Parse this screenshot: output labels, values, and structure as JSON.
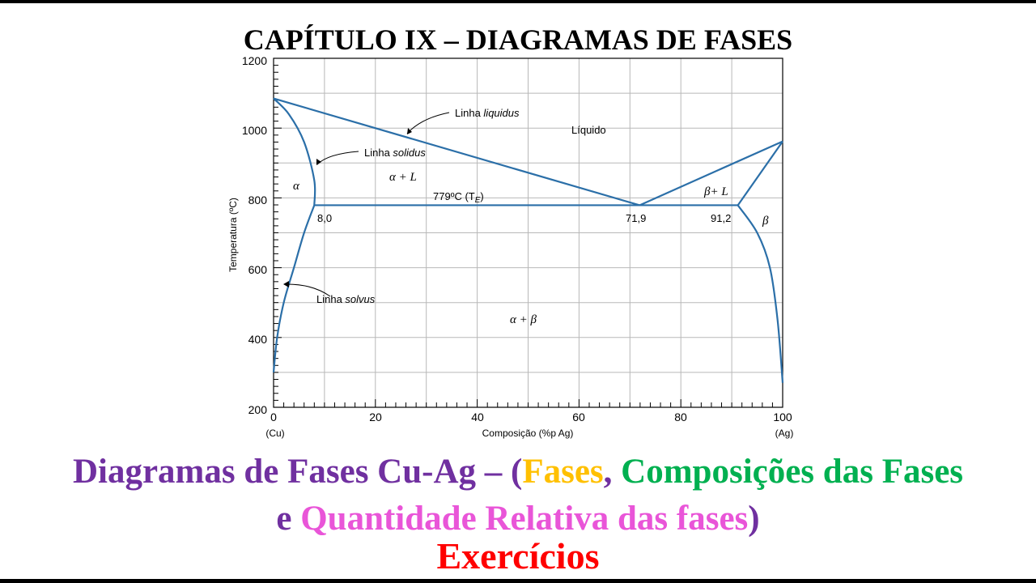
{
  "title": "CAPÍTULO IX –  DIAGRAMAS DE FASES",
  "colors": {
    "curve": "#2b6fa8",
    "grid": "#b8b8b8",
    "purple": "#7030a0",
    "yellow": "#ffc000",
    "green": "#00b050",
    "pink": "#e955d8",
    "red": "#ff0000"
  },
  "diagram": {
    "y_axis_label": "Temperatura (ºC)",
    "x_axis_label": "Composição (%p Ag)",
    "x_end_left": "(Cu)",
    "x_end_right": "(Ag)",
    "x_ticks": [
      "0",
      "20",
      "40",
      "60",
      "80",
      "100"
    ],
    "y_ticks": [
      "200",
      "400",
      "600",
      "800",
      "1000",
      "1200"
    ],
    "x_range": [
      0,
      100
    ],
    "y_range": [
      200,
      1200
    ],
    "curves": {
      "alpha_solvus": [
        [
          0,
          300
        ],
        [
          0.7,
          400
        ],
        [
          2,
          500
        ],
        [
          4,
          600
        ],
        [
          6,
          700
        ],
        [
          8,
          779
        ]
      ],
      "alpha_solidus": [
        [
          0,
          1085
        ],
        [
          3,
          1040
        ],
        [
          6,
          960
        ],
        [
          8,
          850
        ],
        [
          8,
          779
        ]
      ],
      "liquidus_left": [
        [
          0,
          1085
        ],
        [
          71.9,
          779
        ]
      ],
      "eutectic": [
        [
          8,
          779
        ],
        [
          91.2,
          779
        ]
      ],
      "liquidus_right": [
        [
          71.9,
          779
        ],
        [
          100,
          962
        ]
      ],
      "beta_solidus": [
        [
          91.2,
          779
        ],
        [
          100,
          962
        ]
      ],
      "beta_solvus": [
        [
          91.2,
          779
        ],
        [
          95,
          700
        ],
        [
          97.5,
          600
        ],
        [
          99,
          450
        ],
        [
          100,
          270
        ]
      ]
    },
    "labels": {
      "liquidus": {
        "prefix": "Linha ",
        "italic": "liquidus"
      },
      "solidus": {
        "prefix": "Linha ",
        "italic": "solidus"
      },
      "solvus": {
        "prefix": "Linha ",
        "italic": "solvus"
      },
      "liquid": "Líquido",
      "alpha": "α",
      "alpha_L": "α + L",
      "beta_L": "β+ L",
      "beta": "β",
      "alpha_beta": "α + β",
      "eutectic_temp": "779ºC (T",
      "eutectic_sub": "E",
      "eutectic_close": ")",
      "comp_alpha": "8,0",
      "comp_eutectic": "71,9",
      "comp_beta": "91,2"
    }
  },
  "subtitle": {
    "part1": "Diagramas de Fases Cu-Ag – (",
    "fases": "Fases",
    "comma": ", ",
    "composicoes": "Composições das Fases",
    "e": "e ",
    "quantidade": "Quantidade Relativa das fases",
    "close": ")"
  },
  "exercises": "Exercícios"
}
